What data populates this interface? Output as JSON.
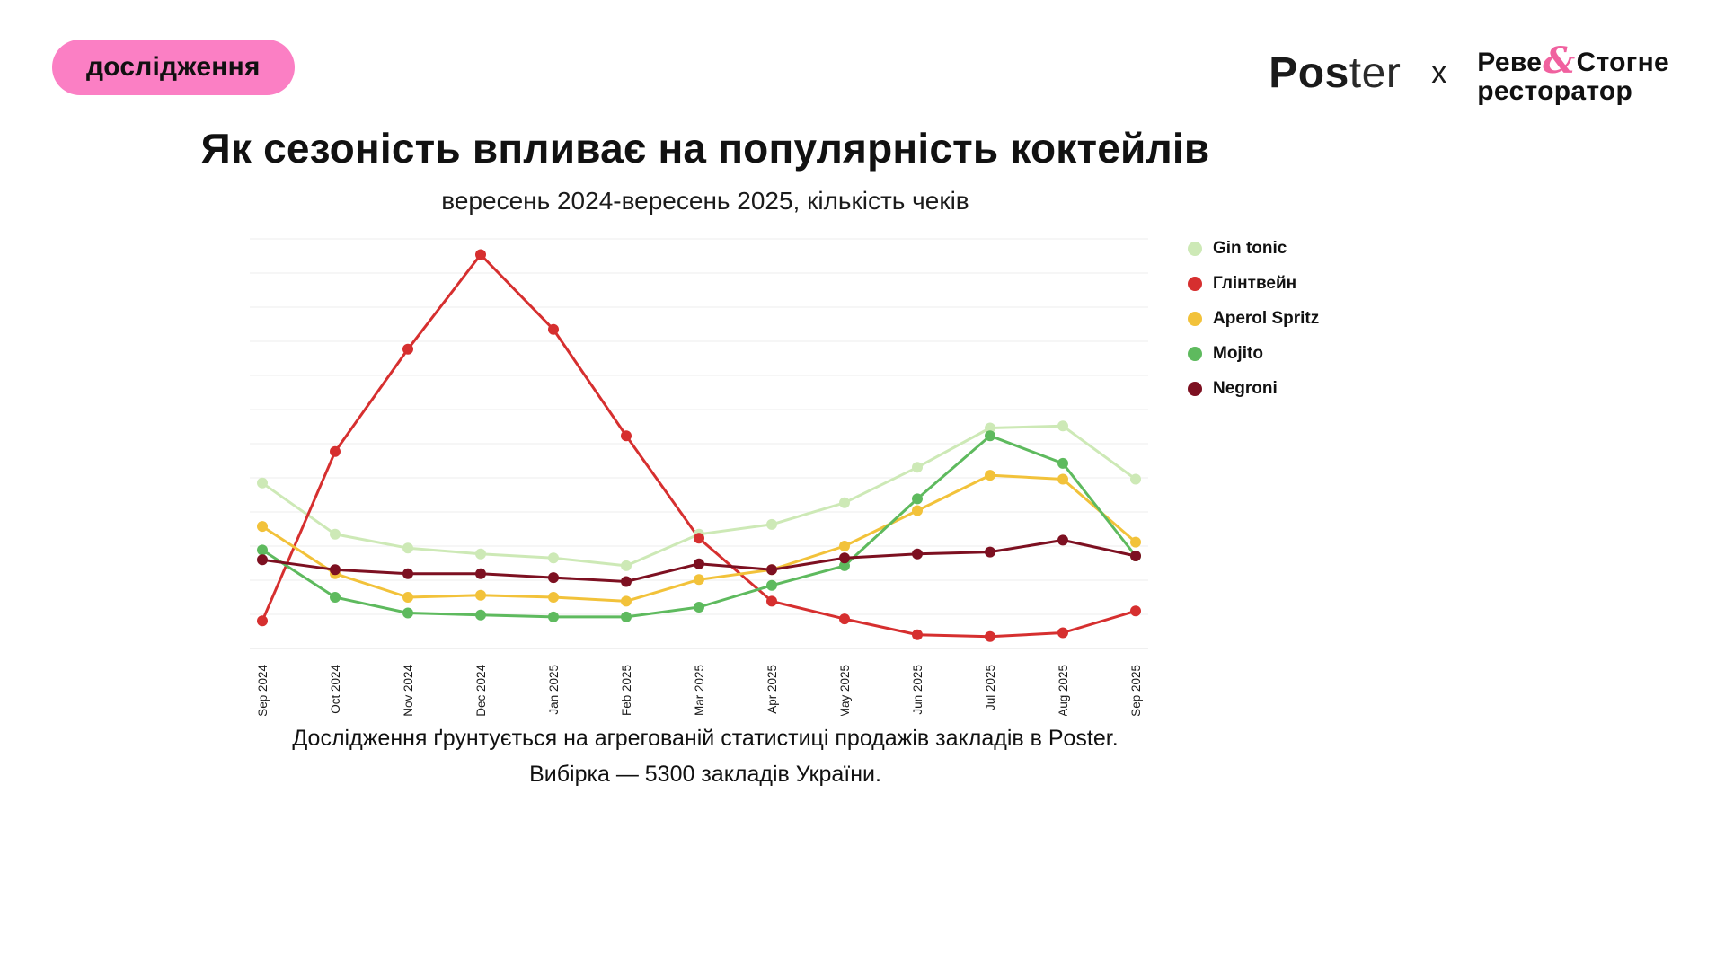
{
  "badge": {
    "label": "дослідження",
    "bg_color": "#fb7fc4"
  },
  "header": {
    "poster_bold": "Pos",
    "poster_light": "ter",
    "separator": "x",
    "partner_line1_pre": "Реве",
    "partner_amp": "&",
    "partner_line1_post": "Стогне",
    "partner_line2": "ресторатор"
  },
  "title": "Як сезоність впливає на популярність коктейлів",
  "subtitle": "вересень 2024-вересень 2025, кількість чеків",
  "footer": {
    "line1": "Дослідження ґрунтується на агрегованій статистиці продажів закладів в Poster.",
    "line2": "Вибірка — 5300 закладів України."
  },
  "chart_data": {
    "type": "line",
    "title": "Як сезоність впливає на популярність коктейлів",
    "subtitle": "вересень 2024-вересень 2025, кількість чеків",
    "categories": [
      "Sep 2024",
      "Oct 2024",
      "Nov 2024",
      "Dec 2024",
      "Jan 2025",
      "Feb 2025",
      "Mar 2025",
      "Apr 2025",
      "May 2025",
      "Jun 2025",
      "Jul 2025",
      "Aug 2025",
      "Sep 2025"
    ],
    "series": [
      {
        "name": "Gin tonic",
        "color": "#cde9b6",
        "values": [
          42,
          29,
          25.5,
          24,
          23,
          21,
          29,
          31.5,
          37,
          46,
          56,
          56.5,
          43
        ]
      },
      {
        "name": "Глінтвейн",
        "color": "#d62f2f",
        "values": [
          7,
          50,
          76,
          100,
          81,
          54,
          28,
          12,
          7.5,
          3.5,
          3,
          4,
          9.5
        ]
      },
      {
        "name": "Aperol Spritz",
        "color": "#f2c23a",
        "values": [
          31,
          19,
          13,
          13.5,
          13,
          12,
          17.5,
          20,
          26,
          35,
          44,
          43,
          27
        ]
      },
      {
        "name": "Mojito",
        "color": "#5eba5e",
        "values": [
          25,
          13,
          9,
          8.5,
          8,
          8,
          10.5,
          16,
          21,
          38,
          54,
          47,
          23.5
        ]
      },
      {
        "name": "Negroni",
        "color": "#7d1021",
        "values": [
          22.5,
          20,
          19,
          19,
          18,
          17,
          21.5,
          20,
          23,
          24,
          24.5,
          27.5,
          23.5
        ]
      }
    ],
    "xlabel": "",
    "ylabel": "",
    "ylim": [
      0,
      104
    ],
    "grid": true,
    "y_axis_labels": false,
    "legend_position": "right"
  }
}
